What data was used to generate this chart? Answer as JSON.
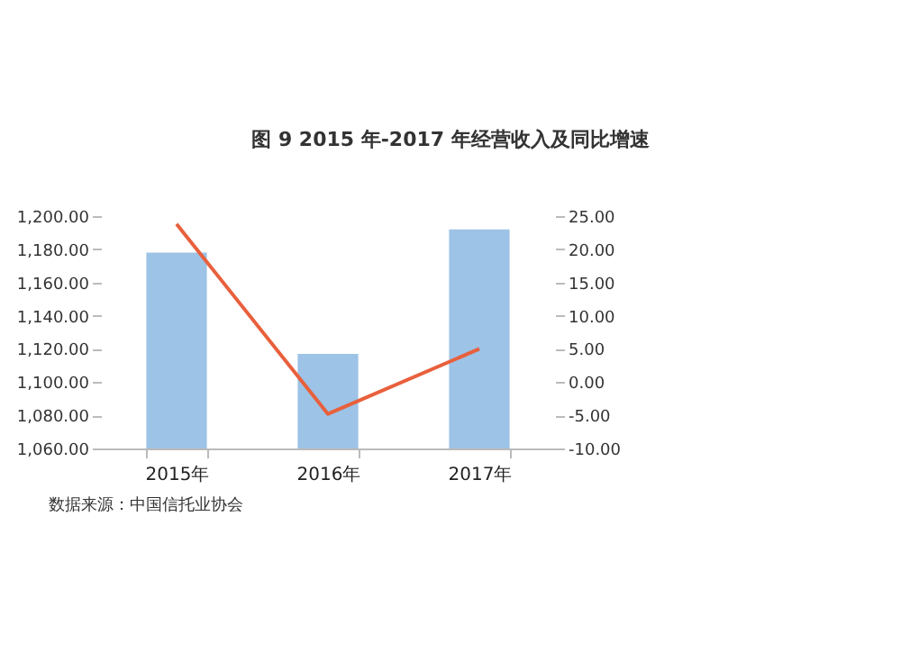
{
  "chart_data": {
    "type": "bar",
    "title": "图 9 2015 年-2017 年经营收入及同比增速",
    "categories": [
      "2015年",
      "2016年",
      "2017年"
    ],
    "series": [
      {
        "color": "#9dc3e6",
        "values": [
          1178,
          1117,
          1192
        ]
      },
      {
        "type": "line",
        "axis": "y2",
        "color": "#e8603c",
        "values": [
          23.8,
          -4.8,
          5
        ]
      }
    ],
    "ylim": [
      1060,
      1200
    ],
    "yticks": [
      {
        "value": 1060,
        "label": "1,060.00"
      },
      {
        "value": 1080,
        "label": "1,080.00"
      },
      {
        "value": 1100,
        "label": "1,100.00"
      },
      {
        "value": 1120,
        "label": "1,120.00"
      },
      {
        "value": 1140,
        "label": "1,140.00"
      },
      {
        "value": 1160,
        "label": "1,160.00"
      },
      {
        "value": 1180,
        "label": "1,180.00"
      },
      {
        "value": 1200,
        "label": "1,200.00"
      }
    ],
    "y2lim": [
      -10,
      25
    ],
    "y2ticks": [
      {
        "value": -10,
        "label": "-10.00"
      },
      {
        "value": -5,
        "label": "-5.00"
      },
      {
        "value": 0,
        "label": "0.00"
      },
      {
        "value": 5,
        "label": "5.00"
      },
      {
        "value": 10,
        "label": "10.00"
      },
      {
        "value": 15,
        "label": "15.00"
      },
      {
        "value": 20,
        "label": "20.00"
      },
      {
        "value": 25,
        "label": "25.00"
      }
    ],
    "annotations": [
      "数据来源：中国信托业协会"
    ],
    "grid": false,
    "marker": "none",
    "line_style": "solid"
  }
}
